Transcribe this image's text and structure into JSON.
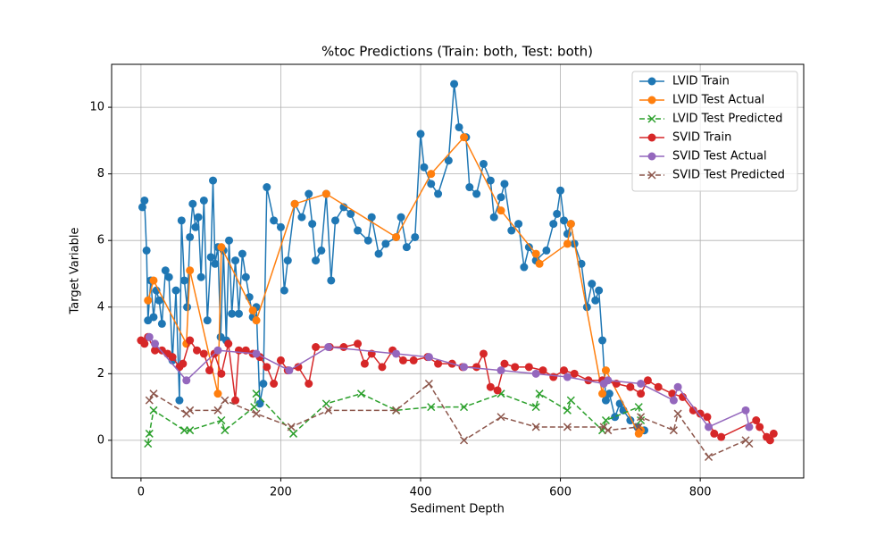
{
  "chart_data": {
    "type": "line",
    "title": "%toc Predictions (Train: both, Test: both)",
    "x_label": "Sediment Depth",
    "y_label": "Target Variable",
    "xlim": [
      -42,
      948
    ],
    "ylim": [
      -1.13,
      11.29
    ],
    "xticks": [
      0,
      200,
      400,
      600,
      800
    ],
    "yticks": [
      0,
      2,
      4,
      6,
      8,
      10
    ],
    "grid": true,
    "legend": "upper right",
    "series": [
      {
        "name": "LVID Train",
        "color": "#1f77b4",
        "marker": "o",
        "linestyle": "solid",
        "x": [
          2,
          5,
          8,
          10,
          14,
          18,
          22,
          26,
          30,
          35,
          40,
          45,
          50,
          55,
          58,
          62,
          66,
          70,
          74,
          78,
          82,
          86,
          90,
          95,
          100,
          103,
          106,
          110,
          114,
          118,
          122,
          126,
          130,
          135,
          140,
          145,
          150,
          155,
          160,
          165,
          170,
          175,
          180,
          190,
          200,
          205,
          210,
          220,
          230,
          240,
          245,
          250,
          258,
          265,
          272,
          278,
          290,
          300,
          310,
          325,
          330,
          340,
          350,
          365,
          372,
          380,
          392,
          400,
          405,
          415,
          425,
          440,
          448,
          455,
          465,
          470,
          480,
          490,
          500,
          505,
          515,
          520,
          530,
          540,
          548,
          555,
          565,
          580,
          590,
          595,
          600,
          605,
          610,
          615,
          620,
          630,
          638,
          645,
          650,
          655,
          660,
          665,
          670,
          678,
          685,
          690,
          700,
          710,
          720
        ],
        "values": [
          7.0,
          7.2,
          5.7,
          3.6,
          4.8,
          3.7,
          4.5,
          4.2,
          3.5,
          5.1,
          4.9,
          2.4,
          4.5,
          1.2,
          6.6,
          4.8,
          4.0,
          6.1,
          7.1,
          6.4,
          6.7,
          4.9,
          7.2,
          3.6,
          5.5,
          7.8,
          5.3,
          5.8,
          3.1,
          5.7,
          3.0,
          6.0,
          3.8,
          5.4,
          3.8,
          5.6,
          4.9,
          4.3,
          3.7,
          4.0,
          1.1,
          1.7,
          7.6,
          6.6,
          6.4,
          4.5,
          5.4,
          7.1,
          6.7,
          7.4,
          6.5,
          5.4,
          5.7,
          7.4,
          4.8,
          6.6,
          7.0,
          6.8,
          6.3,
          6.0,
          6.7,
          5.6,
          5.9,
          6.1,
          6.7,
          5.8,
          6.1,
          9.2,
          8.2,
          7.7,
          7.4,
          8.4,
          10.7,
          9.4,
          9.1,
          7.6,
          7.4,
          8.3,
          7.8,
          6.7,
          7.3,
          7.7,
          6.3,
          6.5,
          5.2,
          5.8,
          5.4,
          5.7,
          6.5,
          6.8,
          7.5,
          6.6,
          6.2,
          6.5,
          5.9,
          5.3,
          4.0,
          4.7,
          4.2,
          4.5,
          3.0,
          1.2,
          1.4,
          0.7,
          1.1,
          0.9,
          0.6,
          0.4,
          0.3
        ]
      },
      {
        "name": "LVID Test Actual",
        "color": "#ff7f0e",
        "marker": "o",
        "linestyle": "solid",
        "x": [
          10,
          18,
          65,
          70,
          110,
          115,
          160,
          165,
          220,
          265,
          365,
          415,
          462,
          515,
          565,
          570,
          610,
          615,
          660,
          665,
          712,
          715
        ],
        "values": [
          4.2,
          4.8,
          2.9,
          5.1,
          1.4,
          5.8,
          3.9,
          3.6,
          7.1,
          7.4,
          6.1,
          8.0,
          9.1,
          6.9,
          5.6,
          5.3,
          5.9,
          6.5,
          1.4,
          2.1,
          0.2,
          0.3
        ]
      },
      {
        "name": "LVID Test Predicted",
        "color": "#2ca02c",
        "marker": "x",
        "linestyle": "dashed",
        "x": [
          10,
          12,
          18,
          62,
          70,
          115,
          120,
          162,
          165,
          218,
          265,
          315,
          365,
          415,
          462,
          515,
          565,
          570,
          610,
          615,
          660,
          665,
          712,
          715
        ],
        "values": [
          -0.1,
          0.2,
          0.9,
          0.3,
          0.3,
          0.6,
          0.3,
          1.0,
          1.4,
          0.2,
          1.1,
          1.4,
          0.9,
          1.0,
          1.0,
          1.4,
          1.0,
          1.4,
          0.9,
          1.2,
          0.3,
          0.6,
          1.0,
          0.6
        ]
      },
      {
        "name": "SVID Train",
        "color": "#d62728",
        "marker": "o",
        "linestyle": "solid",
        "x": [
          0,
          5,
          10,
          20,
          30,
          38,
          45,
          55,
          60,
          70,
          80,
          90,
          98,
          105,
          115,
          125,
          135,
          140,
          150,
          160,
          170,
          180,
          190,
          200,
          210,
          225,
          240,
          250,
          270,
          290,
          310,
          320,
          330,
          345,
          360,
          375,
          390,
          410,
          425,
          445,
          460,
          480,
          490,
          500,
          510,
          520,
          535,
          555,
          575,
          590,
          605,
          620,
          640,
          660,
          680,
          700,
          715,
          725,
          740,
          760,
          775,
          790,
          800,
          810,
          820,
          830,
          880,
          885,
          895,
          900,
          905
        ],
        "values": [
          3.0,
          2.9,
          3.1,
          2.7,
          2.7,
          2.6,
          2.5,
          2.2,
          2.3,
          3.0,
          2.7,
          2.6,
          2.1,
          2.6,
          2.0,
          2.9,
          1.2,
          2.7,
          2.7,
          2.6,
          2.5,
          2.2,
          1.7,
          2.4,
          2.1,
          2.2,
          1.7,
          2.8,
          2.8,
          2.8,
          2.9,
          2.3,
          2.6,
          2.2,
          2.7,
          2.4,
          2.4,
          2.5,
          2.3,
          2.3,
          2.2,
          2.2,
          2.6,
          1.6,
          1.5,
          2.3,
          2.2,
          2.2,
          2.1,
          1.9,
          2.1,
          2.0,
          1.8,
          1.8,
          1.7,
          1.6,
          1.4,
          1.8,
          1.6,
          1.4,
          1.3,
          0.9,
          0.8,
          0.7,
          0.2,
          0.1,
          0.6,
          0.4,
          0.1,
          0.0,
          0.2
        ]
      },
      {
        "name": "SVID Test Actual",
        "color": "#9467bd",
        "marker": "o",
        "linestyle": "solid",
        "x": [
          12,
          20,
          65,
          110,
          165,
          212,
          268,
          365,
          412,
          462,
          515,
          565,
          610,
          662,
          668,
          715,
          762,
          768,
          812,
          865,
          870
        ],
        "values": [
          3.1,
          2.9,
          1.8,
          2.7,
          2.6,
          2.1,
          2.8,
          2.6,
          2.5,
          2.2,
          2.1,
          2.0,
          1.9,
          1.7,
          1.8,
          1.7,
          1.2,
          1.6,
          0.4,
          0.9,
          0.4
        ]
      },
      {
        "name": "SVID Test Predicted",
        "color": "#8c564b",
        "marker": "x",
        "linestyle": "dashed",
        "x": [
          12,
          18,
          65,
          70,
          110,
          120,
          165,
          215,
          268,
          365,
          412,
          462,
          515,
          565,
          610,
          662,
          668,
          712,
          715,
          762,
          768,
          812,
          865,
          870
        ],
        "values": [
          1.2,
          1.4,
          0.8,
          0.9,
          0.9,
          1.2,
          0.8,
          0.4,
          0.9,
          0.9,
          1.7,
          0.0,
          0.7,
          0.4,
          0.4,
          0.4,
          0.3,
          0.4,
          0.7,
          0.3,
          0.8,
          -0.5,
          0.0,
          -0.1
        ]
      }
    ]
  }
}
